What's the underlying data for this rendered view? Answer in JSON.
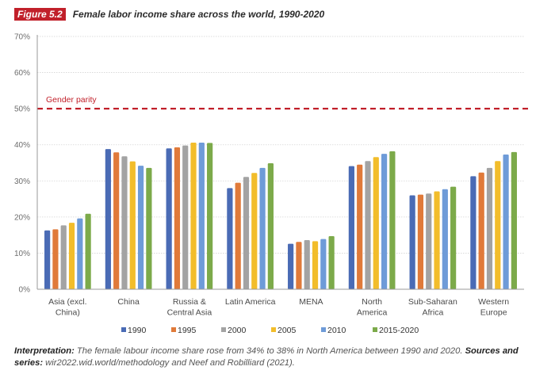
{
  "figure": {
    "label": "Figure 5.2",
    "title": "Female labor income share across the world, 1990-2020",
    "colors": {
      "accent": "#c1202a"
    }
  },
  "chart_data": {
    "type": "bar",
    "title": "Female labor income share across the world, 1990-2020",
    "xlabel": "",
    "ylabel": "",
    "ylim": [
      0,
      70
    ],
    "yticks": [
      0,
      10,
      20,
      30,
      40,
      50,
      60,
      70
    ],
    "ytick_labels": [
      "0%",
      "10%",
      "20%",
      "30%",
      "40%",
      "50%",
      "60%",
      "70%"
    ],
    "grid": true,
    "legend_position": "bottom",
    "categories": [
      [
        "Asia (excl.",
        "China)"
      ],
      [
        "China"
      ],
      [
        "Russia &",
        "Central Asia"
      ],
      [
        "Latin America"
      ],
      [
        "MENA"
      ],
      [
        "North",
        "America"
      ],
      [
        "Sub-Saharan",
        "Africa"
      ],
      [
        "Western",
        "Europe"
      ]
    ],
    "series": [
      {
        "name": "1990",
        "color": "#4a6bb5",
        "values": [
          16.3,
          38.8,
          39.0,
          28.0,
          12.6,
          34.1,
          26.0,
          31.3
        ]
      },
      {
        "name": "1995",
        "color": "#e07a3a",
        "values": [
          16.6,
          37.9,
          39.3,
          29.5,
          13.1,
          34.5,
          26.2,
          32.3
        ]
      },
      {
        "name": "2000",
        "color": "#a3a3a3",
        "values": [
          17.7,
          36.8,
          39.8,
          31.1,
          13.6,
          35.5,
          26.5,
          33.6
        ]
      },
      {
        "name": "2005",
        "color": "#f2bd2b",
        "values": [
          18.4,
          35.4,
          40.6,
          32.2,
          13.3,
          36.6,
          27.1,
          35.5
        ]
      },
      {
        "name": "2010",
        "color": "#6e9bd8",
        "values": [
          19.6,
          34.2,
          40.6,
          33.6,
          13.9,
          37.5,
          27.7,
          37.3
        ]
      },
      {
        "name": "2015-2020",
        "color": "#7caa4a",
        "values": [
          20.9,
          33.6,
          40.5,
          34.9,
          14.7,
          38.2,
          28.4,
          38.0
        ]
      }
    ],
    "reference_line": {
      "value": 50,
      "label": "Gender parity",
      "color": "#c1202a",
      "style": "dashed"
    }
  },
  "note": {
    "interp_label": "Interpretation:",
    "interp_text": " The female labour income share rose from 34% to 38% in North America between 1990 and 2020. ",
    "sources_label": "Sources and series:",
    "sources_text": " wir2022.wid.world/methodology and Neef and Robilliard (2021)."
  }
}
